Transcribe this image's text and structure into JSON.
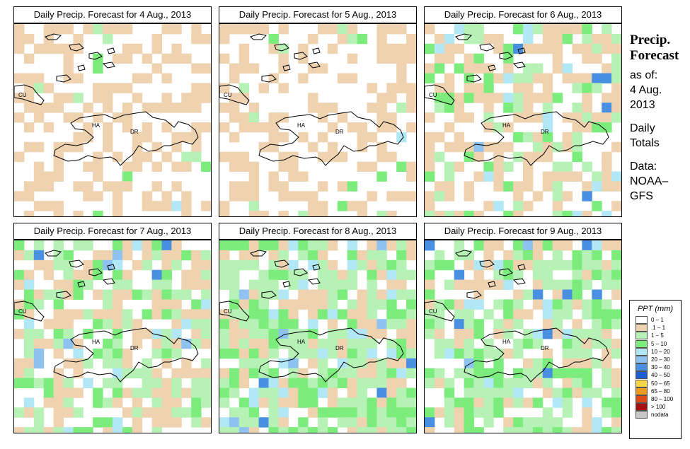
{
  "panels": [
    {
      "title": "Daily Precip. Forecast for  4 Aug., 2013",
      "seed": 11,
      "wet": 0.05,
      "tan": 0.38
    },
    {
      "title": "Daily Precip. Forecast for  5 Aug., 2013",
      "seed": 23,
      "wet": 0.06,
      "tan": 0.36
    },
    {
      "title": "Daily Precip. Forecast for  6 Aug., 2013",
      "seed": 37,
      "wet": 0.28,
      "tan": 0.34
    },
    {
      "title": "Daily Precip. Forecast for  7 Aug., 2013",
      "seed": 41,
      "wet": 0.42,
      "tan": 0.3
    },
    {
      "title": "Daily Precip. Forecast for  8 Aug., 2013",
      "seed": 53,
      "wet": 0.62,
      "tan": 0.22
    },
    {
      "title": "Daily Precip. Forecast for  9 Aug., 2013",
      "seed": 67,
      "wet": 0.55,
      "tan": 0.18
    }
  ],
  "map_labels": {
    "cuba": "CU",
    "haiti": "HA",
    "dominican_republic": "DR"
  },
  "sidebar": {
    "heading_line1": "Precip.",
    "heading_line2": "Forecast",
    "as_of": "as of:",
    "date_line1": "4 Aug.",
    "date_line2": "2013",
    "totals_line1": "Daily",
    "totals_line2": "Totals",
    "data_line1": "Data:",
    "data_line2": "NOAA–",
    "data_line3": "GFS"
  },
  "legend": {
    "title": "PPT (mm)",
    "items": [
      {
        "label": "0 – 1",
        "color": "#ffffff"
      },
      {
        "label": ".1 – 1",
        "color": "#efd3b0"
      },
      {
        "label": "1 – 5",
        "color": "#b6f2b6"
      },
      {
        "label": "5 – 10",
        "color": "#7ced7c"
      },
      {
        "label": "10 – 20",
        "color": "#b2e8f5"
      },
      {
        "label": "20 – 30",
        "color": "#8ec2f0"
      },
      {
        "label": "30 – 40",
        "color": "#4a90e2"
      },
      {
        "label": "40 – 50",
        "color": "#1c5fd4"
      },
      {
        "label": "50 – 65",
        "color": "#f7d64a"
      },
      {
        "label": "65 – 80",
        "color": "#f39a1e"
      },
      {
        "label": "80 – 100",
        "color": "#e04a18"
      },
      {
        "label": "> 100",
        "color": "#a81010"
      },
      {
        "label": "nodata",
        "color": "#c8c8c8"
      }
    ]
  }
}
